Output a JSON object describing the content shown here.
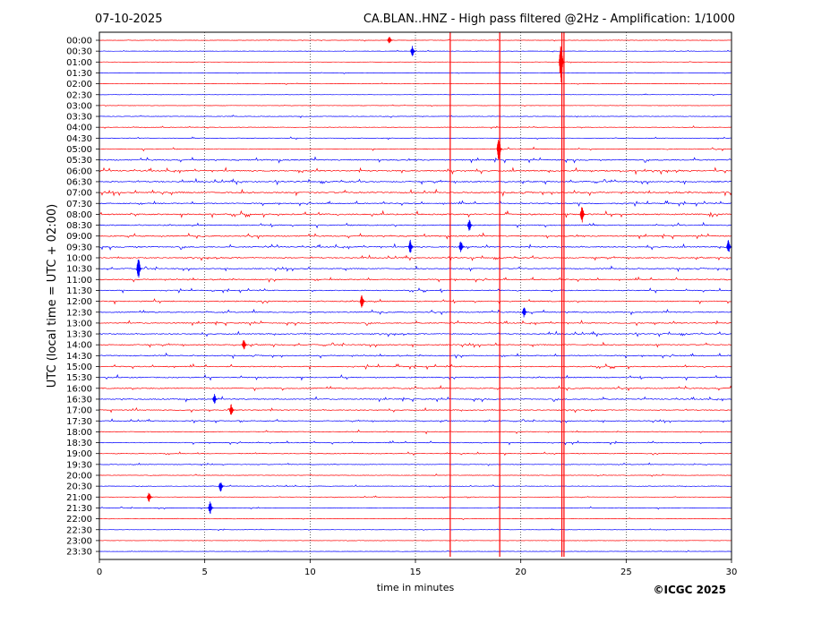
{
  "header": {
    "date": "07-10-2025",
    "title": "CA.BLAN..HNZ - High pass filtered @2Hz - Amplification: 1/1000"
  },
  "footer": {
    "copyright": "©ICGC 2025"
  },
  "chart_data": {
    "type": "line",
    "title": "CA.BLAN..HNZ - High pass filtered @2Hz - Amplification: 1/1000",
    "xlabel": "time in minutes",
    "ylabel": "UTC (local time = UTC + 02:00)",
    "xlim": [
      0,
      30
    ],
    "xticks": [
      0,
      5,
      10,
      15,
      20,
      25,
      30
    ],
    "vertical_gridlines_dotted": [
      5,
      10,
      15,
      20,
      25
    ],
    "rows": [
      "00:00",
      "00:30",
      "01:00",
      "01:30",
      "02:00",
      "02:30",
      "03:00",
      "03:30",
      "04:00",
      "04:30",
      "05:00",
      "05:30",
      "06:00",
      "06:30",
      "07:00",
      "07:30",
      "08:00",
      "08:30",
      "09:00",
      "09:30",
      "10:00",
      "10:30",
      "11:00",
      "11:30",
      "12:00",
      "12:30",
      "13:00",
      "13:30",
      "14:00",
      "14:30",
      "15:00",
      "15:30",
      "16:00",
      "16:30",
      "17:00",
      "17:30",
      "18:00",
      "18:30",
      "19:00",
      "19:30",
      "20:00",
      "20:30",
      "21:00",
      "21:30",
      "22:00",
      "22:30",
      "23:00",
      "23:30"
    ],
    "row_colors": [
      "#ff0000",
      "#0000ff"
    ],
    "noise_level": [
      0.3,
      0.3,
      0.3,
      0.3,
      0.3,
      0.3,
      0.3,
      0.4,
      0.4,
      0.4,
      0.6,
      0.9,
      1.0,
      0.9,
      1.0,
      0.8,
      1.0,
      0.8,
      0.9,
      0.9,
      0.8,
      0.8,
      0.8,
      0.7,
      0.8,
      0.8,
      0.8,
      0.8,
      0.8,
      0.8,
      0.8,
      0.8,
      0.8,
      0.8,
      0.7,
      0.6,
      0.6,
      0.6,
      0.5,
      0.5,
      0.4,
      0.4,
      0.4,
      0.4,
      0.3,
      0.3,
      0.3,
      0.3
    ],
    "vertical_transients": [
      {
        "minute": 16.65,
        "row_start": 0,
        "row_end": 47,
        "color": "#ff0000"
      },
      {
        "minute": 19.0,
        "row_start": 0,
        "row_end": 47,
        "color": "#ff0000"
      },
      {
        "minute": 21.95,
        "row_start": 0,
        "row_end": 47,
        "color": "#ff0000"
      },
      {
        "minute": 22.05,
        "row_start": 0,
        "row_end": 47,
        "color": "#ff0000"
      }
    ],
    "events": [
      {
        "row": 2,
        "minute": 21.95,
        "amp": 2.5
      },
      {
        "row": 10,
        "minute": 19.0,
        "amp": 1.6
      },
      {
        "row": 16,
        "minute": 22.95,
        "amp": 1.0
      },
      {
        "row": 17,
        "minute": 17.6,
        "amp": 0.7
      },
      {
        "row": 19,
        "minute": 14.8,
        "amp": 0.8
      },
      {
        "row": 19,
        "minute": 17.2,
        "amp": 0.8
      },
      {
        "row": 19,
        "minute": 29.9,
        "amp": 0.8
      },
      {
        "row": 21,
        "minute": 1.9,
        "amp": 1.3
      },
      {
        "row": 24,
        "minute": 12.5,
        "amp": 0.8
      },
      {
        "row": 25,
        "minute": 20.2,
        "amp": 0.6
      },
      {
        "row": 28,
        "minute": 6.9,
        "amp": 0.6
      },
      {
        "row": 33,
        "minute": 5.5,
        "amp": 0.6
      },
      {
        "row": 34,
        "minute": 6.3,
        "amp": 0.7
      },
      {
        "row": 41,
        "minute": 5.8,
        "amp": 0.6
      },
      {
        "row": 42,
        "minute": 2.4,
        "amp": 0.6
      },
      {
        "row": 43,
        "minute": 5.3,
        "amp": 0.8
      },
      {
        "row": 1,
        "minute": 14.9,
        "amp": 0.6
      },
      {
        "row": 0,
        "minute": 13.8,
        "amp": 0.4
      }
    ]
  }
}
